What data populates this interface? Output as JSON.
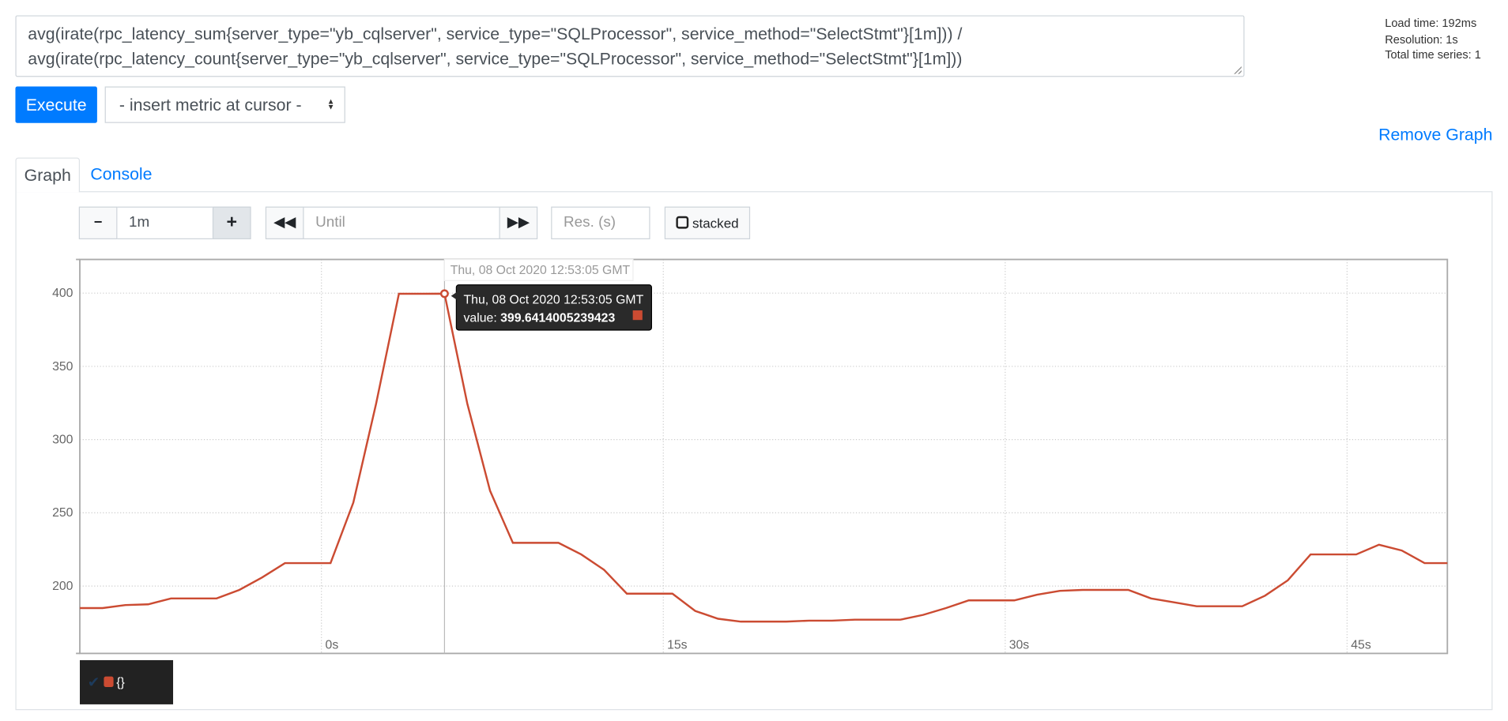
{
  "query": {
    "expression": "avg(irate(rpc_latency_sum{server_type=\"yb_cqlserver\", service_type=\"SQLProcessor\", service_method=\"SelectStmt\"}[1m])) /\navg(irate(rpc_latency_count{server_type=\"yb_cqlserver\", service_type=\"SQLProcessor\", service_method=\"SelectStmt\"}[1m]))"
  },
  "stats": {
    "load_time": "Load time: 192ms",
    "resolution": "Resolution: 1s",
    "total_series": "Total time series: 1"
  },
  "toolbar": {
    "execute_label": "Execute",
    "insert_metric_label": "- insert metric at cursor -",
    "remove_graph_label": "Remove Graph"
  },
  "tabs": [
    {
      "label": "Graph",
      "active": true
    },
    {
      "label": "Console",
      "active": false
    }
  ],
  "controls": {
    "range_minus": "−",
    "range_value": "1m",
    "range_plus": "+",
    "back_icon": "double-left-icon",
    "until_placeholder": "Until",
    "forward_icon": "double-right-icon",
    "res_placeholder": "Res. (s)",
    "stacked_label": "stacked"
  },
  "colors": {
    "accent": "#007bff",
    "series": "#cb4b32"
  },
  "tooltip": {
    "header": "Thu, 08 Oct 2020 12:53:05 GMT",
    "value_label": "value: ",
    "value": "399.6414005239423"
  },
  "hover_label": "Thu, 08 Oct 2020 12:53:05 GMT",
  "legend": {
    "label": "{}",
    "checked": true
  },
  "chart_data": {
    "type": "line",
    "xticks": [
      {
        "v": 0,
        "label": "0s"
      },
      {
        "v": 15,
        "label": "15s"
      },
      {
        "v": 30,
        "label": "30s"
      },
      {
        "v": 45,
        "label": "45s"
      }
    ],
    "yticks": [
      200,
      250,
      300,
      350,
      400
    ],
    "xlim": [
      -10.6,
      49.4
    ],
    "ylim": [
      154,
      423
    ],
    "grid": true,
    "series": [
      {
        "name": "{}",
        "color": "#cb4b32",
        "x": [
          -10.6,
          -9.6,
          -8.6,
          -7.6,
          -6.6,
          -5.6,
          -4.6,
          -3.6,
          -2.6,
          -1.6,
          -0.6,
          0.4,
          1.4,
          2.4,
          3.4,
          4.4,
          5.4,
          6.4,
          7.4,
          8.4,
          9.4,
          10.4,
          11.4,
          12.4,
          13.4,
          14.4,
          15.4,
          16.4,
          17.4,
          18.4,
          19.4,
          20.4,
          21.4,
          22.4,
          23.4,
          24.4,
          25.4,
          26.4,
          27.4,
          28.4,
          29.4,
          30.4,
          31.4,
          32.4,
          33.4,
          34.4,
          35.4,
          36.4,
          37.4,
          38.4,
          39.4,
          40.4,
          41.4,
          42.4,
          43.4,
          44.4,
          45.4,
          46.4,
          47.4,
          48.4,
          49.4
        ],
        "y": [
          185,
          185,
          187,
          187.5,
          191.5,
          191.5,
          191.5,
          197.4,
          205.9,
          215.7,
          215.7,
          215.7,
          257,
          324.6,
          399.6,
          399.6,
          399.64,
          324.6,
          265,
          229.5,
          229.5,
          229.5,
          221.6,
          211.1,
          194.8,
          194.8,
          194.8,
          183,
          177.7,
          175.7,
          175.7,
          175.7,
          176.4,
          176.4,
          177,
          177,
          177,
          180.3,
          185,
          190.2,
          190.2,
          190.2,
          194.1,
          196.7,
          197.4,
          197.4,
          197.4,
          191.5,
          188.9,
          186.2,
          186.2,
          186.2,
          193.4,
          203.9,
          221.6,
          221.6,
          221.6,
          228.2,
          224.3,
          215.7,
          215.7
        ]
      }
    ],
    "hover_index": 16
  }
}
